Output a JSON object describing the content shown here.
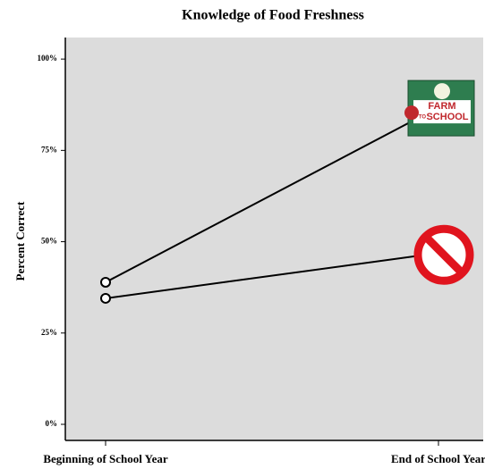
{
  "chart_data": {
    "type": "line",
    "title": "Knowledge of Food Freshness",
    "ylabel": "Percent Correct",
    "categories": [
      "Beginning of School Year",
      "End of School Year"
    ],
    "series": [
      {
        "color": "#000000",
        "values": [
          38.9,
          86.8
        ]
      },
      {
        "color": "#000000",
        "values": [
          34.5,
          46.9
        ]
      }
    ],
    "ylim": [
      -4.4,
      105.9
    ],
    "yticks": [
      {
        "value": 0,
        "label": "0%"
      },
      {
        "value": 25,
        "label": "25%"
      },
      {
        "value": 50,
        "label": "50%"
      },
      {
        "value": 75,
        "label": "75%"
      },
      {
        "value": 100,
        "label": "100%"
      }
    ],
    "annotations": [
      "FARM",
      "TO",
      "SCHOOL"
    ]
  }
}
